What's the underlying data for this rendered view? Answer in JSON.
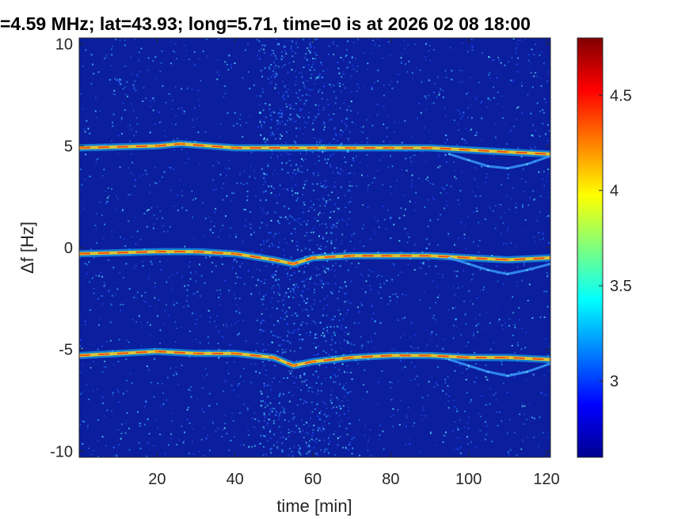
{
  "chart_data": {
    "type": "heatmap",
    "title": "=4.59 MHz;  lat=43.93; long=5.71, time=0 is at 2026 02 08 18:00",
    "xlabel": "time [min]",
    "ylabel": "Δf [Hz]",
    "xlim": [
      0,
      121
    ],
    "ylim": [
      -10.3,
      10.3
    ],
    "xticks": [
      20,
      40,
      60,
      80,
      100,
      120
    ],
    "xtick_labels": [
      "20",
      "40",
      "60",
      "80",
      "100",
      "120"
    ],
    "yticks": [
      10,
      5,
      0,
      -5,
      -10
    ],
    "ytick_labels": [
      "10",
      "5",
      "0",
      "-5",
      "-10"
    ],
    "colorbar": {
      "colormap": "jet",
      "clim": [
        2.6,
        4.8
      ],
      "ticks": [
        3,
        3.5,
        4,
        4.5
      ],
      "tick_labels": [
        "3",
        "3.5",
        "4",
        "4.5"
      ]
    },
    "background_color": "#0a1e9e",
    "series": [
      {
        "name": "",
        "x": [
          0,
          20,
          26,
          40,
          55,
          60,
          70,
          80,
          90,
          100,
          110,
          121
        ],
        "y": [
          4.9,
          5.0,
          5.1,
          4.9,
          4.9,
          4.9,
          4.9,
          4.9,
          4.9,
          4.8,
          4.7,
          4.6
        ]
      },
      {
        "name": "",
        "x": [
          0,
          20,
          30,
          40,
          50,
          55,
          60,
          70,
          80,
          90,
          100,
          110,
          121
        ],
        "y": [
          -0.3,
          -0.2,
          -0.2,
          -0.3,
          -0.6,
          -0.8,
          -0.5,
          -0.4,
          -0.4,
          -0.4,
          -0.5,
          -0.6,
          -0.5
        ]
      },
      {
        "name": "",
        "x": [
          0,
          20,
          30,
          40,
          50,
          55,
          60,
          70,
          80,
          90,
          100,
          110,
          121
        ],
        "y": [
          -5.3,
          -5.1,
          -5.2,
          -5.2,
          -5.4,
          -5.8,
          -5.6,
          -5.4,
          -5.3,
          -5.3,
          -5.4,
          -5.4,
          -5.5
        ]
      },
      {
        "name": "",
        "x": [
          95,
          100,
          105,
          110,
          115,
          121
        ],
        "y": [
          4.6,
          4.3,
          4.0,
          3.9,
          4.1,
          4.5
        ]
      },
      {
        "name": "",
        "x": [
          95,
          100,
          105,
          110,
          115,
          121
        ],
        "y": [
          -0.5,
          -0.8,
          -1.1,
          -1.3,
          -1.1,
          -0.8
        ]
      },
      {
        "name": "",
        "x": [
          95,
          100,
          105,
          110,
          115,
          121
        ],
        "y": [
          -5.5,
          -5.8,
          -6.1,
          -6.3,
          -6.1,
          -5.7
        ]
      }
    ]
  }
}
